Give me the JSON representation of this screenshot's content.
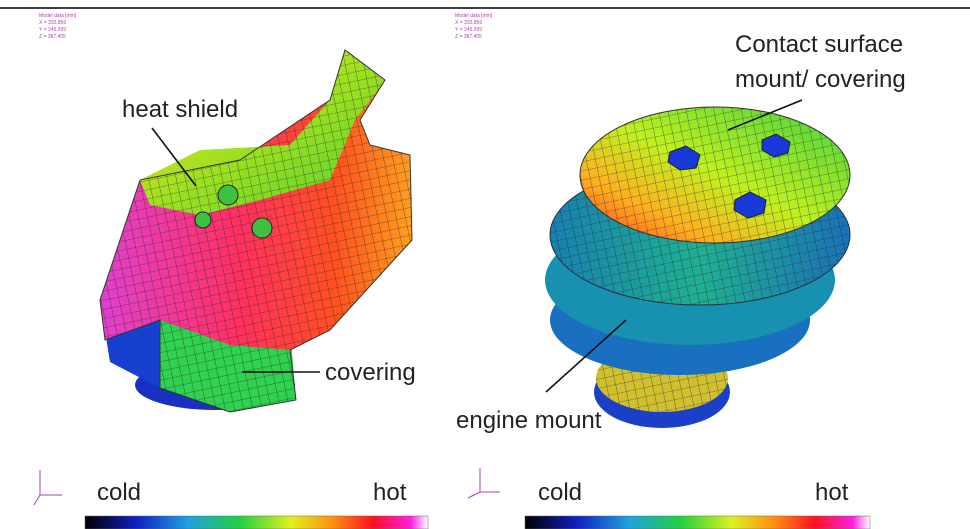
{
  "left_panel": {
    "info": [
      "Model data [mm]",
      "X = 333.856",
      "Y = 245.399",
      "Z = 387.455"
    ],
    "labels": {
      "heat_shield": "heat shield",
      "covering": "covering"
    },
    "legend": {
      "cold": "cold",
      "hot": "hot"
    }
  },
  "right_panel": {
    "info": [
      "Model data [mm]",
      "X = 333.856",
      "Y = 245.399",
      "Z = 387.455"
    ],
    "labels": {
      "contact_surface": [
        "Contact surface",
        "mount/ covering"
      ],
      "engine_mount": "engine mount"
    },
    "legend": {
      "cold": "cold",
      "hot": "hot"
    }
  }
}
